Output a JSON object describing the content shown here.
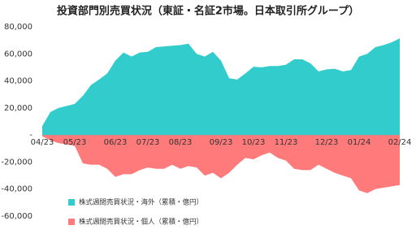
{
  "chart_data": {
    "type": "area",
    "title": "投資部門別売買状況（東証・名証2市場。日本取引所グループ）",
    "categories": [
      "04/23",
      null,
      null,
      null,
      "05/23",
      null,
      null,
      null,
      null,
      "06/23",
      null,
      null,
      null,
      "07/23",
      null,
      null,
      null,
      "08/23",
      null,
      null,
      null,
      null,
      "09/23",
      null,
      null,
      null,
      "10/23",
      null,
      null,
      null,
      "11/23",
      null,
      null,
      null,
      null,
      "12/23",
      null,
      null,
      null,
      "01/24",
      null,
      null,
      null,
      null,
      "02/24"
    ],
    "series": [
      {
        "name": "株式週間売買状況・海外（累積・億円）",
        "color": "#33cccc",
        "values": [
          6600,
          17000,
          20000,
          21500,
          23000,
          29000,
          37000,
          41000,
          45500,
          55000,
          61000,
          58000,
          61000,
          61500,
          65000,
          65500,
          66000,
          66500,
          67500,
          60000,
          58000,
          61500,
          55000,
          42000,
          41000,
          45500,
          50500,
          50000,
          51000,
          51000,
          52000,
          56000,
          56000,
          53000,
          47000,
          48500,
          49000,
          47000,
          48000,
          58000,
          60000,
          65000,
          66500,
          68500,
          71500
        ]
      },
      {
        "name": "株式週間売買状況・個人（累積・億円）",
        "color": "#ff7b7b",
        "values": [
          -1000,
          -4000,
          -6000,
          -7000,
          -8000,
          -21000,
          -22000,
          -22000,
          -25000,
          -31000,
          -29000,
          -29000,
          -26000,
          -24000,
          -25000,
          -25000,
          -22000,
          -25000,
          -23000,
          -24000,
          -30000,
          -28000,
          -32000,
          -28000,
          -22000,
          -17000,
          -18000,
          -15000,
          -13000,
          -17000,
          -19000,
          -25000,
          -26000,
          -26000,
          -22000,
          -25000,
          -28000,
          -30000,
          -32000,
          -41000,
          -43000,
          -40000,
          -39000,
          -38000,
          -37000
        ]
      }
    ],
    "ylim": [
      -60000,
      80000
    ],
    "yticks": [
      {
        "value": 80000,
        "label": "80,000"
      },
      {
        "value": 60000,
        "label": "60,000"
      },
      {
        "value": 40000,
        "label": "40,000"
      },
      {
        "value": 20000,
        "label": "20,000"
      },
      {
        "value": 0,
        "label": "-"
      },
      {
        "value": -20000,
        "label": "-20,000"
      },
      {
        "value": -40000,
        "label": "-40,000"
      },
      {
        "value": -60000,
        "label": "-60,000"
      }
    ],
    "grid": false
  }
}
